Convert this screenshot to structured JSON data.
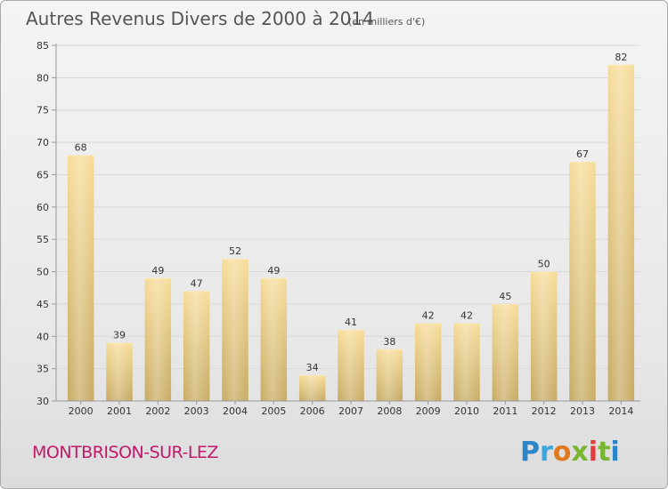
{
  "header": {
    "title": "Autres Revenus Divers de 2000 à 2014",
    "subtitle": "(en milliers d'€)"
  },
  "footer": {
    "town": "MONTBRISON-SUR-LEZ",
    "logo_letters": [
      "P",
      "r",
      "o",
      "x",
      "i",
      "t",
      "i"
    ],
    "logo_colors": [
      "#2a86c9",
      "#3aa6df",
      "#e07a1d",
      "#7ab532",
      "#e23b3b",
      "#7ab532",
      "#2a86c9"
    ]
  },
  "colors": {
    "bar_top": "#f7dc98",
    "bar_bottom": "#c7aa62",
    "bar_light": "#fbe8b4"
  },
  "chart_data": {
    "type": "bar",
    "categories": [
      "2000",
      "2001",
      "2002",
      "2003",
      "2004",
      "2005",
      "2006",
      "2007",
      "2008",
      "2009",
      "2010",
      "2011",
      "2012",
      "2013",
      "2014"
    ],
    "values": [
      68,
      39,
      49,
      47,
      52,
      49,
      34,
      41,
      38,
      42,
      42,
      45,
      50,
      67,
      82
    ],
    "title": "Autres Revenus Divers de 2000 à 2014",
    "subtitle": "(en milliers d'€)",
    "xlabel": "",
    "ylabel": "",
    "ylim": [
      30,
      85
    ],
    "yticks": [
      30,
      35,
      40,
      45,
      50,
      55,
      60,
      65,
      70,
      75,
      80,
      85
    ],
    "grid": true,
    "legend": "none"
  }
}
